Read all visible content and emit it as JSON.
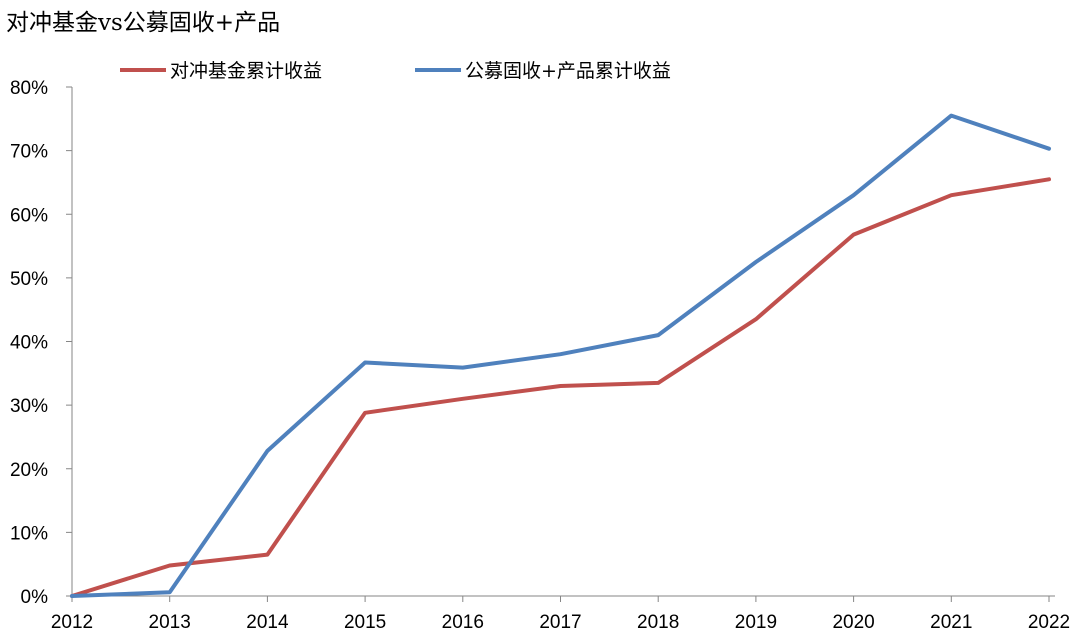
{
  "chart_data": {
    "type": "line",
    "title": "对冲基金vs公募固收+产品",
    "xlabel": "",
    "ylabel": "",
    "x": [
      "2012",
      "2013",
      "2014",
      "2015",
      "2016",
      "2017",
      "2018",
      "2019",
      "2020",
      "2021",
      "2022"
    ],
    "ylim": [
      0,
      80
    ],
    "yticks": [
      "0%",
      "10%",
      "20%",
      "30%",
      "40%",
      "50%",
      "60%",
      "70%",
      "80%"
    ],
    "grid": false,
    "legend_position": "top",
    "series": [
      {
        "name": "对冲基金累计收益",
        "color": "#c0504d",
        "values": [
          0,
          4.8,
          6.5,
          28.8,
          31.0,
          33.0,
          33.5,
          43.5,
          56.8,
          63.0,
          65.5
        ]
      },
      {
        "name": "公募固收+产品累计收益",
        "color": "#4f81bd",
        "values": [
          0,
          0.6,
          22.8,
          36.7,
          35.9,
          38.0,
          41.0,
          52.5,
          63.0,
          75.5,
          70.3
        ]
      }
    ]
  }
}
